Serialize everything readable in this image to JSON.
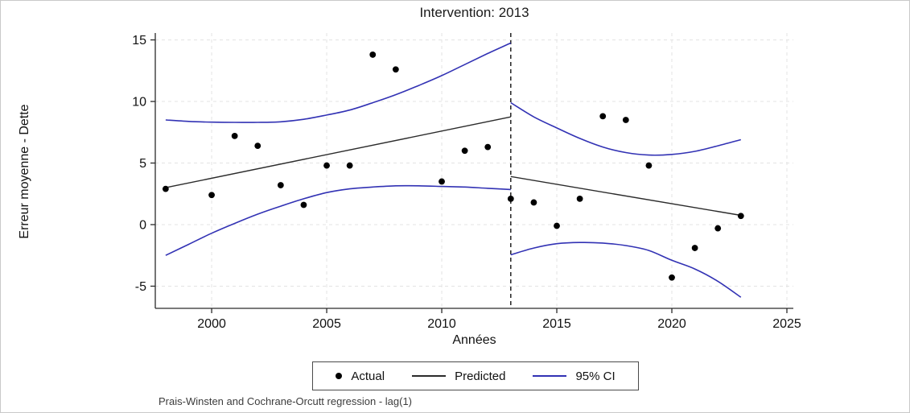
{
  "window": {
    "background": "#ffffff",
    "border_color": "#c9c9c9"
  },
  "chart_data": {
    "type": "scatter",
    "variant": "interrupted-time-series-regression",
    "title": "Intervention: 2013",
    "xlabel": "Années",
    "ylabel": "Erreur moyenne - Dette",
    "note": "Prais-Winsten and Cochrane-Orcutt regression - lag(1)",
    "legend": [
      "Actual",
      "Predicted",
      "95% CI"
    ],
    "legend_position": "bottom-center",
    "grid": true,
    "x_ticks": [
      2000,
      2005,
      2010,
      2015,
      2020,
      2025
    ],
    "y_ticks": [
      -5,
      0,
      5,
      10,
      15
    ],
    "xlim": [
      1997.55,
      2025.28
    ],
    "ylim": [
      -6.8,
      15.56
    ],
    "intervention_year": 2013,
    "colors": {
      "actual": "#000000",
      "predicted": "#2b2b2b",
      "ci": "#3232b4",
      "grid": "#e3e3e3",
      "axis": "#2a2a2a",
      "intervention_line": "#000000"
    },
    "series": [
      {
        "name": "Actual",
        "role": "actual",
        "type": "scatter",
        "points": [
          [
            1998,
            2.9
          ],
          [
            2000,
            2.4
          ],
          [
            2001,
            7.2
          ],
          [
            2002,
            6.4
          ],
          [
            2003,
            3.2
          ],
          [
            2004,
            1.6
          ],
          [
            2005,
            4.8
          ],
          [
            2006,
            4.8
          ],
          [
            2007,
            13.8
          ],
          [
            2008,
            12.6
          ],
          [
            2010,
            3.5
          ],
          [
            2011,
            6.0
          ],
          [
            2012,
            6.3
          ],
          [
            2013,
            2.1
          ],
          [
            2014,
            1.8
          ],
          [
            2015,
            -0.1
          ],
          [
            2016,
            2.1
          ],
          [
            2017,
            8.8
          ],
          [
            2018,
            8.5
          ],
          [
            2019,
            4.8
          ],
          [
            2020,
            -4.3
          ],
          [
            2021,
            -1.9
          ],
          [
            2022,
            -0.3
          ],
          [
            2023,
            0.7
          ]
        ]
      },
      {
        "name": "Predicted (pre-intervention)",
        "role": "predicted",
        "type": "line",
        "points": [
          [
            1998,
            3.0
          ],
          [
            2013,
            8.75
          ]
        ]
      },
      {
        "name": "Predicted (post-intervention)",
        "role": "predicted",
        "type": "line",
        "points": [
          [
            2013,
            3.9
          ],
          [
            2023,
            0.75
          ]
        ]
      },
      {
        "name": "95% CI upper (pre-intervention)",
        "role": "ci",
        "type": "line",
        "points": [
          [
            1998,
            8.5
          ],
          [
            1999,
            8.38
          ],
          [
            2000,
            8.32
          ],
          [
            2001,
            8.3
          ],
          [
            2002,
            8.3
          ],
          [
            2003,
            8.35
          ],
          [
            2004,
            8.55
          ],
          [
            2005,
            8.9
          ],
          [
            2006,
            9.3
          ],
          [
            2007,
            9.9
          ],
          [
            2008,
            10.55
          ],
          [
            2009,
            11.3
          ],
          [
            2010,
            12.1
          ],
          [
            2011,
            13.0
          ],
          [
            2012,
            13.9
          ],
          [
            2013,
            14.75
          ]
        ]
      },
      {
        "name": "95% CI lower (pre-intervention)",
        "role": "ci",
        "type": "line",
        "points": [
          [
            1998,
            -2.5
          ],
          [
            1999,
            -1.6
          ],
          [
            2000,
            -0.7
          ],
          [
            2001,
            0.1
          ],
          [
            2002,
            0.85
          ],
          [
            2003,
            1.5
          ],
          [
            2004,
            2.1
          ],
          [
            2005,
            2.6
          ],
          [
            2006,
            2.9
          ],
          [
            2007,
            3.05
          ],
          [
            2008,
            3.15
          ],
          [
            2009,
            3.15
          ],
          [
            2010,
            3.1
          ],
          [
            2011,
            3.05
          ],
          [
            2012,
            2.95
          ],
          [
            2013,
            2.85
          ]
        ]
      },
      {
        "name": "95% CI upper (post-intervention)",
        "role": "ci",
        "type": "line",
        "points": [
          [
            2013,
            9.9
          ],
          [
            2014,
            8.75
          ],
          [
            2015,
            7.85
          ],
          [
            2016,
            7.0
          ],
          [
            2017,
            6.3
          ],
          [
            2018,
            5.85
          ],
          [
            2019,
            5.65
          ],
          [
            2020,
            5.7
          ],
          [
            2021,
            5.95
          ],
          [
            2022,
            6.4
          ],
          [
            2023,
            6.9
          ]
        ]
      },
      {
        "name": "95% CI lower (post-intervention)",
        "role": "ci",
        "type": "line",
        "points": [
          [
            2013,
            -2.45
          ],
          [
            2014,
            -1.9
          ],
          [
            2015,
            -1.55
          ],
          [
            2016,
            -1.45
          ],
          [
            2017,
            -1.5
          ],
          [
            2018,
            -1.7
          ],
          [
            2019,
            -2.1
          ],
          [
            2020,
            -2.9
          ],
          [
            2021,
            -3.6
          ],
          [
            2022,
            -4.6
          ],
          [
            2023,
            -5.9
          ]
        ]
      }
    ]
  }
}
